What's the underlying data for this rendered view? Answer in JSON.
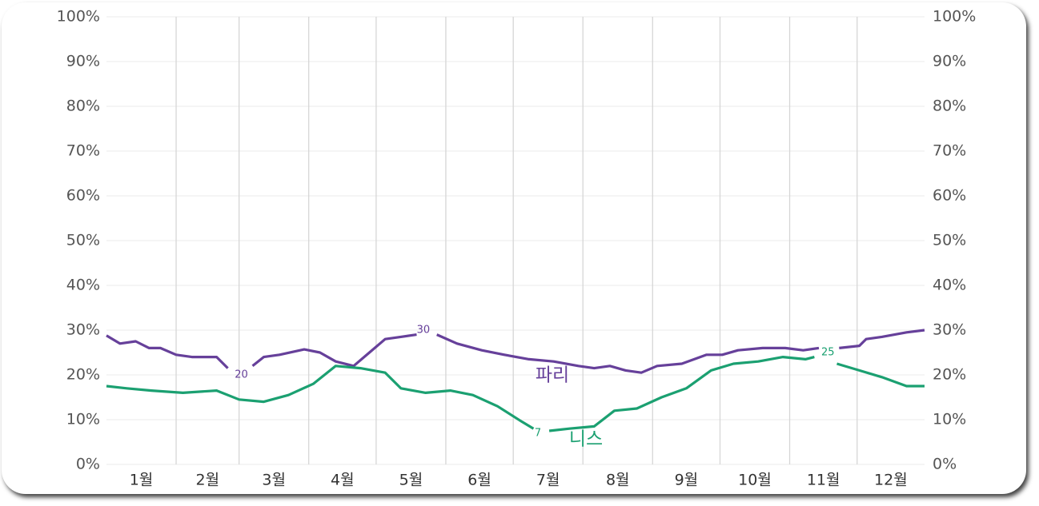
{
  "chart_data": {
    "type": "line",
    "categories": [
      "1월",
      "2월",
      "3월",
      "4월",
      "5월",
      "6월",
      "7월",
      "8월",
      "9월",
      "10월",
      "11월",
      "12월"
    ],
    "xlim": [
      1,
      365
    ],
    "ylim": [
      0,
      100
    ],
    "yticks": [
      {
        "value": 0,
        "label": "0%"
      },
      {
        "value": 10,
        "label": "10%"
      },
      {
        "value": 20,
        "label": "20%"
      },
      {
        "value": 30,
        "label": "30%"
      },
      {
        "value": 40,
        "label": "40%"
      },
      {
        "value": 50,
        "label": "50%"
      },
      {
        "value": 60,
        "label": "60%"
      },
      {
        "value": 70,
        "label": "70%"
      },
      {
        "value": 80,
        "label": "80%"
      },
      {
        "value": 90,
        "label": "90%"
      },
      {
        "value": 100,
        "label": "100%"
      }
    ],
    "grid": true,
    "series": [
      {
        "name": "파리",
        "color": "#66409a",
        "x": [
          1,
          7,
          14,
          20,
          25,
          32,
          39,
          50,
          55,
          58,
          66,
          71,
          78,
          89,
          96,
          103,
          111,
          118,
          125,
          132,
          139,
          142,
          148,
          157,
          168,
          178,
          189,
          200,
          211,
          218,
          225,
          232,
          239,
          246,
          257,
          268,
          275,
          282,
          293,
          303,
          311,
          318,
          322,
          327,
          336,
          339,
          346,
          357,
          365
        ],
        "values": [
          28.8,
          27,
          27.5,
          26,
          26,
          24.5,
          24,
          24,
          21.5,
          null,
          22,
          24,
          24.5,
          25.7,
          25,
          23,
          22,
          25,
          28,
          28.5,
          29,
          null,
          29,
          27,
          25.5,
          24.5,
          23.5,
          23,
          22,
          21.5,
          22,
          21,
          20.5,
          22,
          22.5,
          24.5,
          24.5,
          25.5,
          26,
          26,
          25.5,
          26,
          null,
          26,
          26.5,
          28,
          28.5,
          29.5,
          30
        ],
        "point_labels": [
          {
            "x": 61,
            "value": 20
          },
          {
            "x": 142,
            "value": 30
          }
        ]
      },
      {
        "name": "니스",
        "color": "#1ba071",
        "x": [
          1,
          10,
          21,
          35,
          50,
          60,
          71,
          82,
          93,
          103,
          114,
          125,
          132,
          143,
          154,
          164,
          175,
          186,
          191,
          195,
          198,
          207,
          218,
          227,
          237,
          248,
          259,
          270,
          280,
          291,
          302,
          312,
          316,
          321,
          326,
          336,
          346,
          357,
          365
        ],
        "values": [
          17.5,
          17,
          16.5,
          16,
          16.5,
          14.5,
          14,
          15.5,
          18,
          22,
          21.5,
          20.5,
          17,
          16,
          16.5,
          15.5,
          13,
          9.5,
          8,
          null,
          7.5,
          8,
          8.5,
          12,
          12.5,
          15,
          17,
          21,
          22.5,
          23,
          24,
          23.5,
          24,
          null,
          22.5,
          21,
          19.5,
          17.5,
          17.5
        ],
        "point_labels": [
          {
            "x": 193,
            "value": 7
          },
          {
            "x": 322,
            "value": 25
          }
        ]
      }
    ]
  }
}
